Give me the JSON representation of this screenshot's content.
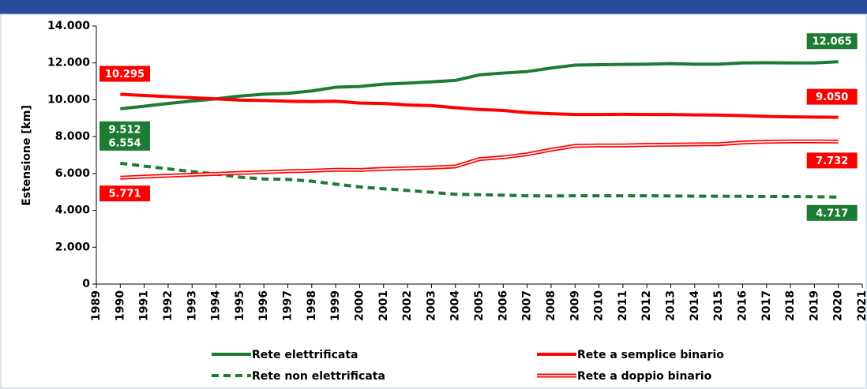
{
  "chart_data": {
    "type": "line",
    "ylabel": "Estensione [km]",
    "x": [
      1990,
      1991,
      1992,
      1993,
      1994,
      1995,
      1996,
      1997,
      1998,
      1999,
      2000,
      2001,
      2002,
      2003,
      2004,
      2005,
      2006,
      2007,
      2008,
      2009,
      2010,
      2011,
      2012,
      2013,
      2014,
      2015,
      2016,
      2017,
      2018,
      2019,
      2020
    ],
    "xlim": [
      1989,
      2021
    ],
    "xticks": [
      1989,
      1990,
      1991,
      1992,
      1993,
      1994,
      1995,
      1996,
      1997,
      1998,
      1999,
      2000,
      2001,
      2002,
      2003,
      2004,
      2005,
      2006,
      2007,
      2008,
      2009,
      2010,
      2011,
      2012,
      2013,
      2014,
      2015,
      2016,
      2017,
      2018,
      2019,
      2020,
      2021
    ],
    "ylim": [
      0,
      14000
    ],
    "yticks": [
      0,
      {
        "value": 2000,
        "label": "2.000"
      },
      {
        "value": 4000,
        "label": "4.000"
      },
      {
        "value": 6000,
        "label": "6.000"
      },
      {
        "value": 8000,
        "label": "8.000"
      },
      {
        "value": 10000,
        "label": "10.000"
      },
      {
        "value": 12000,
        "label": "12.000"
      },
      {
        "value": 14000,
        "label": "14.000"
      }
    ],
    "series": [
      {
        "name": "Rete elettrificata",
        "color": "#1e7b34",
        "line_style": "solid",
        "values": [
          9512,
          9650,
          9800,
          9930,
          10050,
          10200,
          10300,
          10350,
          10480,
          10680,
          10720,
          10850,
          10900,
          10970,
          11050,
          11350,
          11450,
          11530,
          11720,
          11880,
          11900,
          11920,
          11930,
          11960,
          11930,
          11930,
          12000,
          12010,
          12000,
          12000,
          12065
        ],
        "value_labels": [
          "9.512",
          null,
          null,
          null,
          null,
          null,
          null,
          null,
          null,
          null,
          null,
          null,
          null,
          null,
          null,
          null,
          null,
          null,
          null,
          null,
          null,
          null,
          null,
          null,
          null,
          null,
          null,
          null,
          null,
          null,
          "12.065"
        ]
      },
      {
        "name": "Rete a semplice binario",
        "color": "#ff0000",
        "line_style": "solid",
        "values": [
          10295,
          10230,
          10170,
          10110,
          10050,
          9980,
          9960,
          9920,
          9900,
          9920,
          9820,
          9800,
          9720,
          9680,
          9570,
          9470,
          9420,
          9300,
          9240,
          9200,
          9200,
          9210,
          9200,
          9200,
          9180,
          9170,
          9140,
          9100,
          9070,
          9060,
          9050
        ],
        "value_labels": [
          "10.295",
          null,
          null,
          null,
          null,
          null,
          null,
          null,
          null,
          null,
          null,
          null,
          null,
          null,
          null,
          null,
          null,
          null,
          null,
          null,
          null,
          null,
          null,
          null,
          null,
          null,
          null,
          null,
          null,
          null,
          "9.050"
        ]
      },
      {
        "name": "Rete non elettrificata",
        "color": "#1e7b34",
        "line_style": "dashed",
        "values": [
          6554,
          6400,
          6250,
          6100,
          5970,
          5800,
          5700,
          5680,
          5580,
          5420,
          5270,
          5170,
          5080,
          4980,
          4870,
          4850,
          4820,
          4790,
          4780,
          4790,
          4790,
          4790,
          4790,
          4780,
          4770,
          4770,
          4760,
          4750,
          4750,
          4740,
          4717
        ],
        "value_labels": [
          "6.554",
          null,
          null,
          null,
          null,
          null,
          null,
          null,
          null,
          null,
          null,
          null,
          null,
          null,
          null,
          null,
          null,
          null,
          null,
          null,
          null,
          null,
          null,
          null,
          null,
          null,
          null,
          null,
          null,
          null,
          "4.717"
        ]
      },
      {
        "name": "Rete a doppio binario",
        "color": "#ff0000",
        "line_style": "double",
        "values": [
          5771,
          5830,
          5880,
          5930,
          5980,
          6030,
          6070,
          6120,
          6150,
          6200,
          6190,
          6250,
          6280,
          6320,
          6380,
          6780,
          6880,
          7040,
          7290,
          7500,
          7520,
          7520,
          7550,
          7560,
          7580,
          7590,
          7680,
          7720,
          7740,
          7740,
          7732
        ],
        "value_labels": [
          "5.771",
          null,
          null,
          null,
          null,
          null,
          null,
          null,
          null,
          null,
          null,
          null,
          null,
          null,
          null,
          null,
          null,
          null,
          null,
          null,
          null,
          null,
          null,
          null,
          null,
          null,
          null,
          null,
          null,
          null,
          "7.732"
        ]
      }
    ]
  }
}
